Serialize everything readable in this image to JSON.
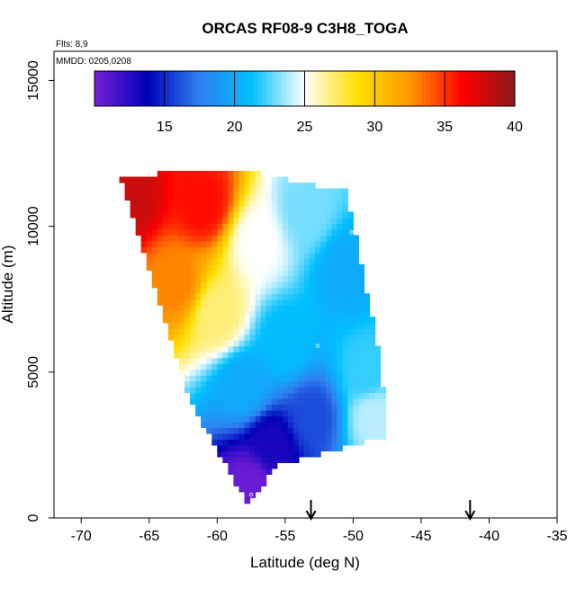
{
  "chart_data": {
    "type": "heatmap",
    "title": "ORCAS RF08-9 C3H8_TOGA",
    "annotations": {
      "flights": "Flts: 8,9",
      "dates": "MMDD: 0205,0208"
    },
    "xlabel": "Latitude (deg N)",
    "ylabel": "Altitude (m)",
    "xlim": [
      -72,
      -35
    ],
    "ylim": [
      0,
      16000
    ],
    "x_ticks": [
      -70,
      -65,
      -60,
      -55,
      -50,
      -45,
      -40,
      -35
    ],
    "x_tick_labels": [
      "-70",
      "-65",
      "-60",
      "-55",
      "-50",
      "-45",
      "-40",
      "-35"
    ],
    "y_ticks": [
      0,
      5000,
      10000,
      15000
    ],
    "y_tick_labels": [
      "0",
      "5000",
      "10000",
      "15000"
    ],
    "colorbar": {
      "range": [
        10,
        40
      ],
      "ticks": [
        15,
        20,
        25,
        30,
        35,
        40
      ],
      "tick_labels": [
        "15",
        "20",
        "25",
        "30",
        "35",
        "40"
      ],
      "colors": [
        "#7a20d8",
        "#0000b8",
        "#2f7ff0",
        "#00c0ff",
        "#ffffff",
        "#ffe000",
        "#ff9800",
        "#ff0000",
        "#8b1a1a"
      ],
      "placement": "top-inside"
    },
    "field": {
      "domain_polygon": [
        [
          -67.2,
          11700
        ],
        [
          -59,
          12000
        ],
        [
          -50.5,
          11200
        ],
        [
          -48,
          5500
        ],
        [
          -47.5,
          2800
        ],
        [
          -55.5,
          1800
        ],
        [
          -57.8,
          500
        ],
        [
          -62,
          4000
        ],
        [
          -67,
          11500
        ]
      ],
      "anchors": [
        {
          "lat": -66.5,
          "alt": 11000,
          "value": 38
        },
        {
          "lat": -61,
          "alt": 10800,
          "value": 36
        },
        {
          "lat": -63,
          "alt": 8000,
          "value": 33
        },
        {
          "lat": -60,
          "alt": 7000,
          "value": 27
        },
        {
          "lat": -57,
          "alt": 9500,
          "value": 25
        },
        {
          "lat": -53.5,
          "alt": 10500,
          "value": 23
        },
        {
          "lat": -50.5,
          "alt": 8500,
          "value": 20
        },
        {
          "lat": -55,
          "alt": 6000,
          "value": 21
        },
        {
          "lat": -58,
          "alt": 4500,
          "value": 20
        },
        {
          "lat": -53,
          "alt": 3500,
          "value": 16
        },
        {
          "lat": -56,
          "alt": 2500,
          "value": 13
        },
        {
          "lat": -57.5,
          "alt": 1200,
          "value": 10.5
        },
        {
          "lat": -48.5,
          "alt": 3500,
          "value": 24
        },
        {
          "lat": -49,
          "alt": 5000,
          "value": 22
        }
      ]
    },
    "markers": [
      {
        "lat": -50.1,
        "alt": 9800
      },
      {
        "lat": -52.6,
        "alt": 5900
      },
      {
        "lat": -57.5,
        "alt": 800
      }
    ],
    "arrows": [
      {
        "lat": -53.1
      },
      {
        "lat": -41.4
      }
    ]
  }
}
